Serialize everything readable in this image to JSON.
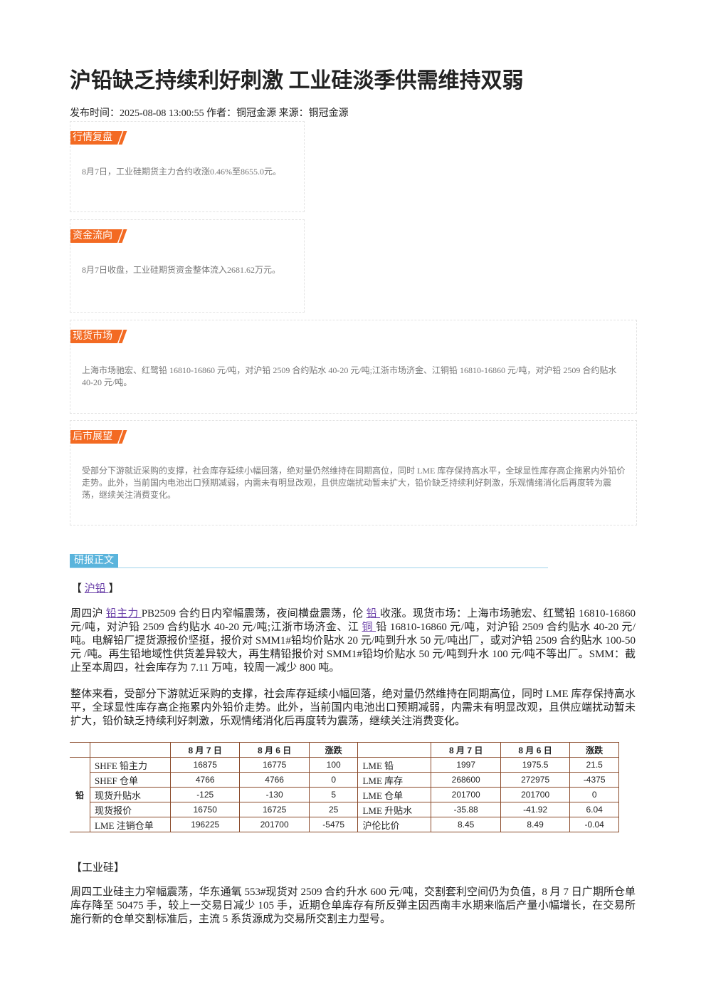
{
  "header": {
    "title": "沪铅缺乏持续利好刺激 工业硅淡季供需维持双弱",
    "meta": "发布时间：2025-08-08 13:00:55 作者：铜冠金源 来源：铜冠金源"
  },
  "summary": [
    {
      "heading": "行情复盘",
      "text": "8月7日，工业硅期货主力合约收涨0.46%至8655.0元。"
    },
    {
      "heading": "资金流向",
      "text": "8月7日收盘，工业硅期货资金整体流入2681.62万元。"
    },
    {
      "heading": "现货市场",
      "text": "上海市场驰宏、红鹭铅 16810-16860 元/吨，对沪铅 2509 合约贴水 40-20 元/吨;江浙市场济金、江铜铅 16810-16860 元/吨，对沪铅 2509 合约贴水 40-20 元/吨。"
    },
    {
      "heading": "后市展望",
      "text": "受部分下游就近采购的支撑，社会库存延续小幅回落，绝对量仍然维持在同期高位，同时 LME 库存保持高水平，全球显性库存高企拖累内外铅价走势。此外，当前国内电池出口预期减弱，内需未有明显改观，且供应端扰动暂未扩大，铅价缺乏持续利好刺激，乐观情绪消化后再度转为震荡，继续关注消费变化。"
    }
  ],
  "report": {
    "heading": "研报正文",
    "lead": {
      "open": "【 ",
      "link": "沪铅 ",
      "close": "】"
    },
    "paragraphs": [
      [
        {
          "text": "周四沪 "
        },
        {
          "text": "铅主力 ",
          "link": true
        },
        {
          "text": "PB2509 合约日内窄幅震荡，夜间横盘震荡，伦 "
        },
        {
          "text": "铅 ",
          "link": true
        },
        {
          "text": "收涨。现货市场：上海市场驰宏、红鹭铅 16810-16860 元/吨，对沪铅 2509 合约贴水 40-20 元/吨;江浙市场济金、江 "
        },
        {
          "text": "铜 ",
          "link": true
        },
        {
          "text": "铅 16810-16860 元/吨，对沪铅 2509 合约贴水 40-20 元/吨。电解铅厂提货源报价坚挺，报价对 SMM1#铅均价贴水 20 元/吨到升水 50 元/吨出厂，或对沪铅 2509 合约贴水 100-50 元 /吨。再生铅地域性供货差异较大，再生精铅报价对 SMM1#铅均价贴水 50 元/吨到升水 100 元/吨不等出厂。SMM：截止至本周四，社会库存为 7.11 万吨，较周一减少 800 吨。"
        }
      ],
      [
        {
          "text": "整体来看，受部分下游就近采购的支撑，社会库存延续小幅回落，绝对量仍然维持在同期高位，同时 LME 库存保持高水平，全球显性库存高企拖累内外铅价走势。此外，当前国内电池出口预期减弱，内需未有明显改观，且供应端扰动暂未扩大，铅价缺乏持续利好刺激，乐观情绪消化后再度转为震荡，继续关注消费变化。"
        }
      ]
    ],
    "table": {
      "group": "铅",
      "left_header": [
        "8 月 7 日",
        "8 月 6 日",
        "涨跌"
      ],
      "right_header": [
        "8 月 7 日",
        "8 月 6 日",
        "涨跌"
      ],
      "rows": [
        [
          "SHFE 铅主力",
          "16875",
          "16775",
          "100",
          "LME 铅",
          "1997",
          "1975.5",
          "21.5"
        ],
        [
          "SHEF 仓单",
          "4766",
          "4766",
          "0",
          "LME 库存",
          "268600",
          "272975",
          "-4375"
        ],
        [
          "现货升贴水",
          "-125",
          "-130",
          "5",
          "LME 仓单",
          "201700",
          "201700",
          "0"
        ],
        [
          "现货报价",
          "16750",
          "16725",
          "25",
          "LME 升贴水",
          "-35.88",
          "-41.92",
          "6.04"
        ],
        [
          "LME 注销仓单",
          "196225",
          "201700",
          "-5475",
          "沪伦比价",
          "8.45",
          "8.49",
          "-0.04"
        ]
      ]
    },
    "section2": "【工业硅】",
    "paragraph3": "周四工业硅主力窄幅震荡，华东通氧 553#现货对 2509 合约升水 600 元/吨，交割套利空间仍为负值，8 月 7 日广期所仓单库存降至 50475 手，较上一交易日减少 105 手，近期仓单库存有所反弹主因西南丰水期来临后产量小幅增长，在交易所施行新的仓单交割标准后，主流 5 系货源成为交易所交割主力型号。"
  }
}
